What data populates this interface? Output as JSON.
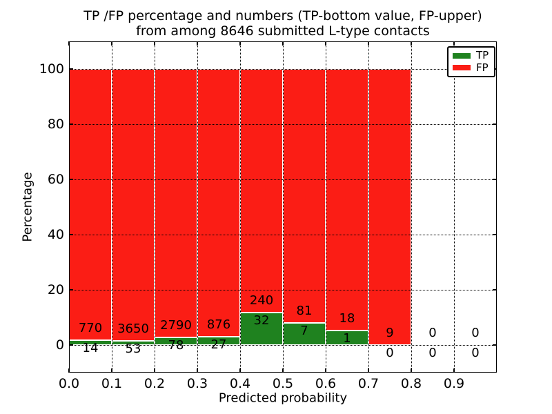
{
  "chart_data": {
    "type": "bar",
    "stacked": true,
    "title_line1": "TP /FP percentage and numbers (TP-bottom value, FP-upper)",
    "title_line2": "from among 8646 submitted L-type contacts",
    "xlabel": "Predicted probability",
    "ylabel": "Percentage",
    "total_contacts": 8646,
    "xlim": [
      0.0,
      1.0
    ],
    "ylim": [
      -10,
      110
    ],
    "bin_width": 0.1,
    "xtick_labels": [
      "0.0",
      "0.1",
      "0.2",
      "0.3",
      "0.4",
      "0.5",
      "0.6",
      "0.7",
      "0.8",
      "0.9"
    ],
    "xtick_values": [
      0.0,
      0.1,
      0.2,
      0.3,
      0.4,
      0.5,
      0.6,
      0.7,
      0.8,
      0.9
    ],
    "ytick_labels": [
      "0",
      "20",
      "40",
      "60",
      "80",
      "100"
    ],
    "ytick_values": [
      0,
      20,
      40,
      60,
      80,
      100
    ],
    "grid": "dotted, drawn above bars",
    "legend_position": "upper right",
    "series": [
      {
        "name": "TP",
        "color": "#1f821f",
        "counts": [
          14,
          53,
          78,
          27,
          32,
          7,
          1,
          0,
          0,
          0
        ]
      },
      {
        "name": "FP",
        "color": "#fb1d15",
        "counts": [
          770,
          3650,
          2790,
          876,
          240,
          81,
          18,
          9,
          0,
          0
        ]
      }
    ],
    "tp_percent_of_bin": [
      1.79,
      1.43,
      2.72,
      2.99,
      11.76,
      7.95,
      5.26,
      0.0,
      0.0,
      0.0
    ],
    "bar_edge_color": "#ffffff",
    "upper_labels_are": "FP counts",
    "lower_labels_are": "TP counts"
  }
}
